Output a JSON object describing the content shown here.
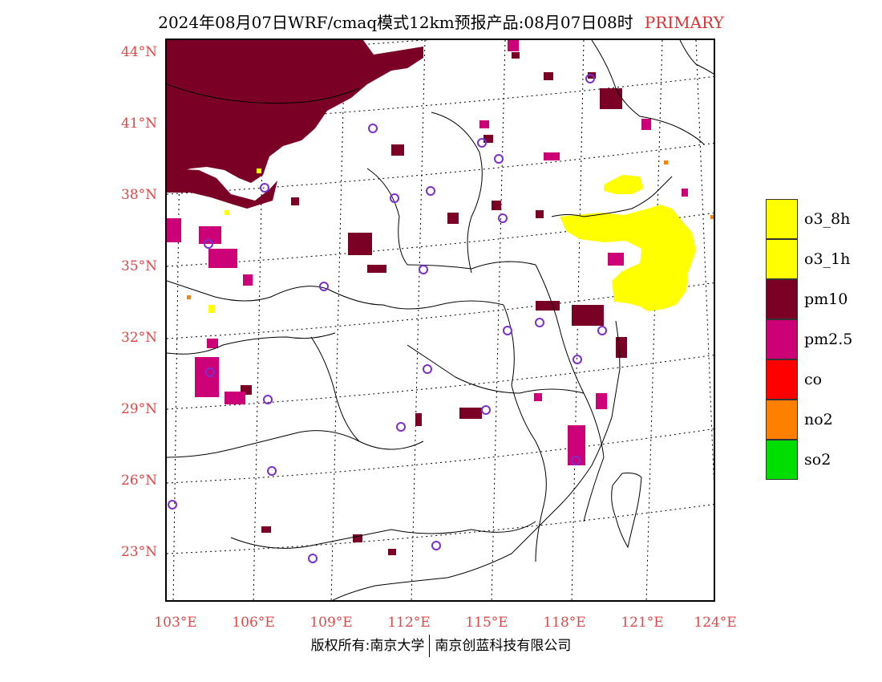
{
  "title": {
    "text": "2024年08月07日WRF/cmaq模式12km预报产品:08月07日08时",
    "tag": "PRIMARY"
  },
  "map": {
    "lat_labels": [
      "44°N",
      "41°N",
      "38°N",
      "35°N",
      "32°N",
      "29°N",
      "26°N",
      "23°N"
    ],
    "lon_labels": [
      "103°E",
      "106°E",
      "109°E",
      "112°E",
      "115°E",
      "118°E",
      "121°E",
      "124°E"
    ]
  },
  "legend": {
    "items": [
      {
        "label": "o3_8h",
        "color": "#ffff00"
      },
      {
        "label": "o3_1h",
        "color": "#ffff00"
      },
      {
        "label": "pm10",
        "color": "#7a0026"
      },
      {
        "label": "pm2.5",
        "color": "#cc0077"
      },
      {
        "label": "co",
        "color": "#ff0000"
      },
      {
        "label": "no2",
        "color": "#ff7f00"
      },
      {
        "label": "so2",
        "color": "#00dd00"
      }
    ]
  },
  "colors": {
    "pm10": "#7a0026",
    "pm25": "#cc0077",
    "o3": "#ffff00",
    "no2": "#ff7f00",
    "station": "#7b2fd0",
    "axis_label": "#e04848"
  },
  "footer": {
    "left": "版权所有:南京大学",
    "right": "南京创蓝科技有限公司"
  }
}
